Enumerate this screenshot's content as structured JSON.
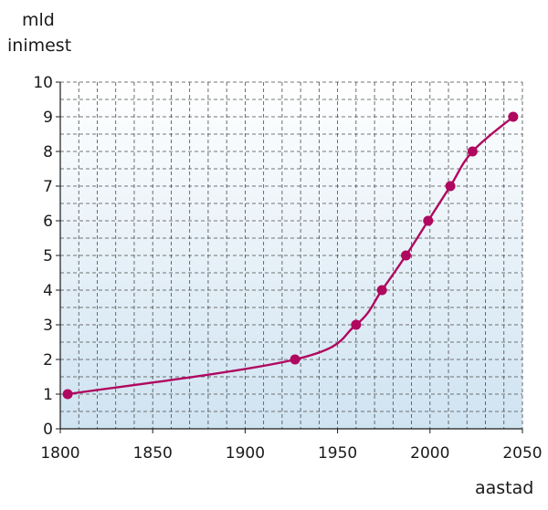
{
  "chart_data": {
    "type": "line",
    "ylabel_lines": [
      "mld",
      "inimest"
    ],
    "xlabel": "aastad",
    "xlim": [
      1800,
      2050
    ],
    "ylim": [
      0,
      10
    ],
    "x_ticks": [
      1800,
      1850,
      1900,
      1950,
      2000,
      2050
    ],
    "y_ticks": [
      0,
      1,
      2,
      3,
      4,
      5,
      6,
      7,
      8,
      9,
      10
    ],
    "grid": true,
    "legend": "none",
    "line_color": "#b0075f",
    "series": [
      {
        "x": [
          1804,
          1927,
          1960,
          1974,
          1987,
          1999,
          2011,
          2023,
          2045
        ],
        "values": [
          1,
          2,
          3,
          4,
          5,
          6,
          7,
          8,
          9
        ]
      }
    ]
  }
}
